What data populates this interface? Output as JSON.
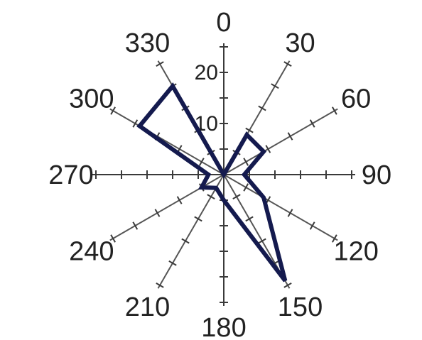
{
  "chart_data": {
    "type": "radar",
    "angular_unit": "degrees",
    "direction": "clockwise",
    "zero_location": "top",
    "angle_tick_labels": [
      "0",
      "30",
      "60",
      "90",
      "120",
      "150",
      "180",
      "210",
      "240",
      "270",
      "300",
      "330"
    ],
    "radius_tick_labels": [
      "10",
      "20"
    ],
    "radius_range": [
      0,
      25
    ],
    "radial_tick_step": 5,
    "colors": {
      "series": "#141a4e",
      "axes": "#3a3a3a",
      "radial": "#555555"
    },
    "series": [
      {
        "theta": [
          0,
          30,
          60,
          90,
          120,
          150,
          180,
          210,
          240,
          270,
          300,
          330
        ],
        "r": [
          0,
          9,
          9,
          4,
          9,
          24,
          5,
          3,
          5,
          3,
          19,
          20
        ]
      }
    ]
  }
}
